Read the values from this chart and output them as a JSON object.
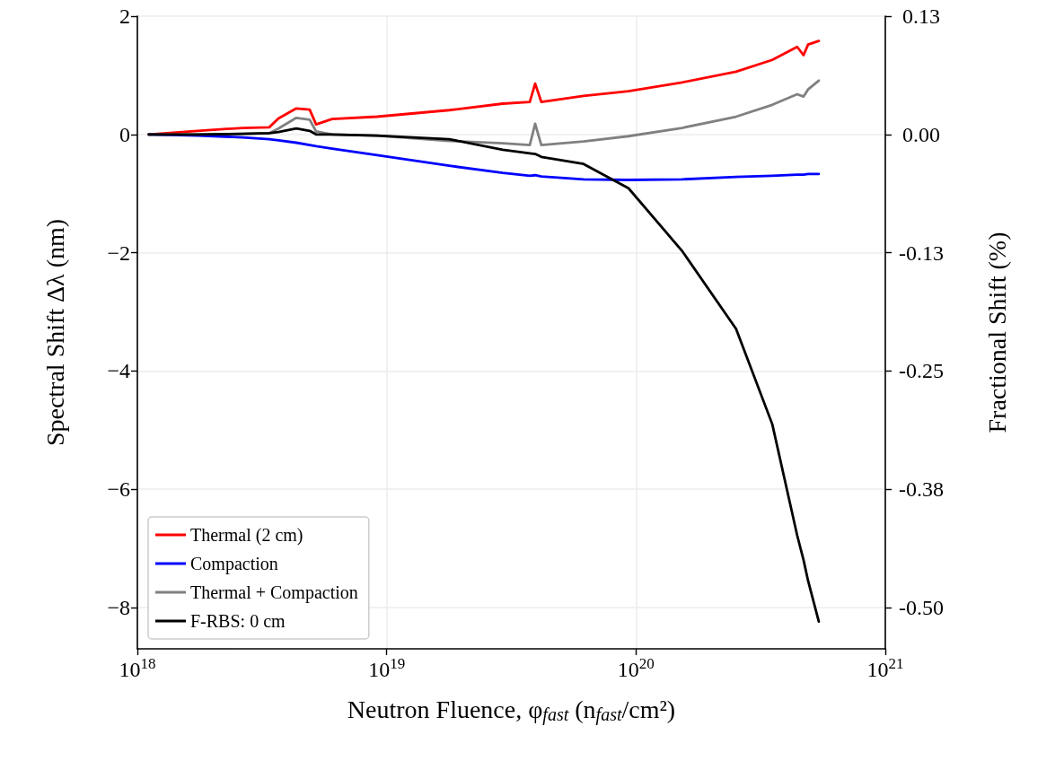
{
  "chart_data": {
    "type": "line",
    "xlabel": "Neutron Fluence, φ$_{fast}$ (n$_{fast}$/cm²)",
    "ylabel": "Spectral Shift Δλ (nm)",
    "y2label": "Fractional Shift (%)",
    "x": [
      1.11e+18,
      1.74e+18,
      2.64e+18,
      3.38e+18,
      3.68e+18,
      4.34e+18,
      4.91e+18,
      5.21e+18,
      6.04e+18,
      9.15e+18,
      1.78e+19,
      2.92e+19,
      3.75e+19,
      3.94e+19,
      4.17e+19,
      6.16e+19,
      9.33e+19,
      1.53e+20,
      2.52e+20,
      3.52e+20,
      4.43e+20,
      4.7e+20,
      4.9e+20,
      5.41e+20
    ],
    "series": [
      {
        "name": "Thermal (2 cm)",
        "color": "#ff0000",
        "values": [
          0,
          0.06,
          0.11,
          0.12,
          0.27,
          0.44,
          0.42,
          0.17,
          0.26,
          0.3,
          0.41,
          0.52,
          0.55,
          0.86,
          0.55,
          0.65,
          0.73,
          0.88,
          1.06,
          1.26,
          1.48,
          1.34,
          1.52,
          1.58
        ]
      },
      {
        "name": "Compaction",
        "color": "#0000ff",
        "values": [
          0,
          -0.02,
          -0.05,
          -0.08,
          -0.1,
          -0.14,
          -0.18,
          -0.2,
          -0.24,
          -0.35,
          -0.53,
          -0.65,
          -0.7,
          -0.69,
          -0.71,
          -0.76,
          -0.77,
          -0.76,
          -0.72,
          -0.7,
          -0.68,
          -0.68,
          -0.67,
          -0.67
        ]
      },
      {
        "name": "Thermal + Compaction",
        "color": "#808080",
        "values": [
          0,
          0,
          0.01,
          0.02,
          0.1,
          0.28,
          0.25,
          0.05,
          0,
          -0.02,
          -0.11,
          -0.15,
          -0.18,
          0.18,
          -0.18,
          -0.12,
          -0.03,
          0.11,
          0.3,
          0.5,
          0.68,
          0.64,
          0.76,
          0.91
        ]
      },
      {
        "name": "F-RBS: 0 cm",
        "color": "#000000",
        "values": [
          0,
          0,
          0.01,
          0.02,
          0.04,
          0.1,
          0.06,
          0,
          0,
          -0.02,
          -0.08,
          -0.26,
          -0.32,
          -0.33,
          -0.38,
          -0.5,
          -0.91,
          -1.97,
          -3.29,
          -4.9,
          -6.78,
          -7.2,
          -7.55,
          -8.24
        ]
      }
    ],
    "log": "x",
    "xlim": [
      1e+18,
      1e+21
    ],
    "xticks": [
      {
        "value": 1e+18,
        "label": "10$^{18}$"
      },
      {
        "value": 1e+19,
        "label": "10$^{19}$"
      },
      {
        "value": 1e+20,
        "label": "10$^{20}$"
      },
      {
        "value": 1e+21,
        "label": "10$^{21}$"
      }
    ],
    "ylim": [
      -8.7,
      2
    ],
    "yticks": [
      {
        "value": -8,
        "label": "−8"
      },
      {
        "value": -6,
        "label": "−6"
      },
      {
        "value": -4,
        "label": "−4"
      },
      {
        "value": -2,
        "label": "−2"
      },
      0,
      2
    ],
    "y2lim": [
      -0.54375,
      0.125
    ],
    "y2ticks": [
      {
        "value": -0.5,
        "label": "-0.50"
      },
      {
        "value": -0.375,
        "label": "-0.38"
      },
      {
        "value": -0.25,
        "label": "-0.25"
      },
      {
        "value": -0.125,
        "label": "-0.13"
      },
      {
        "value": 0,
        "label": "0.00"
      },
      {
        "value": 0.125,
        "label": "0.13"
      }
    ],
    "grid": true,
    "legend": "bottom left",
    "marker": "none",
    "line_style": "solid"
  }
}
